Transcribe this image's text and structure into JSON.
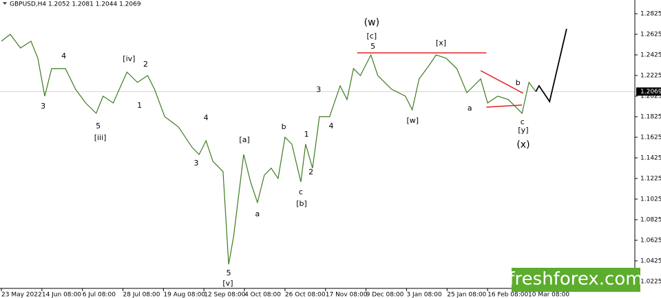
{
  "chart_data": {
    "type": "line",
    "title": "GBPUSD,H4  1.2052 1.2081 1.2044 1.2069",
    "last_price": 1.2069,
    "watermark": "freshforex.com",
    "xlim": [
      0,
      15.6
    ],
    "ylim": [
      1.0158,
      1.2958
    ],
    "xticks": [
      {
        "value": 0,
        "label": "23 May 2022"
      },
      {
        "value": 1,
        "label": "14 Jun 08:00"
      },
      {
        "value": 2,
        "label": "6 Jul 08:00"
      },
      {
        "value": 3,
        "label": "28 Jul 08:00"
      },
      {
        "value": 4,
        "label": "19 Aug 08:00"
      },
      {
        "value": 5,
        "label": "12 Sep 08:00"
      },
      {
        "value": 6,
        "label": "4 Oct 08:00"
      },
      {
        "value": 7,
        "label": "26 Oct 08:00"
      },
      {
        "value": 8,
        "label": "17 Nov 08:00"
      },
      {
        "value": 9,
        "label": "9 Dec 08:00"
      },
      {
        "value": 10,
        "label": "3 Jan 08:00"
      },
      {
        "value": 11,
        "label": "25 Jan 08:00"
      },
      {
        "value": 12,
        "label": "16 Feb 08:00"
      },
      {
        "value": 13,
        "label": "10 Mar 08:00"
      }
    ],
    "yticks": [
      1.2825,
      1.2625,
      1.2425,
      1.2225,
      1.2025,
      1.1825,
      1.1625,
      1.1425,
      1.1225,
      1.1025,
      1.0825,
      1.0625,
      1.0425,
      1.0225
    ],
    "series": [
      {
        "color": "#3d7a1f",
        "x": [
          0,
          0.22,
          0.47,
          0.73,
          0.9,
          1.07,
          1.24,
          1.58,
          1.83,
          2.08,
          2.34,
          2.51,
          2.76,
          3.1,
          3.36,
          3.61,
          3.78,
          4.03,
          4.37,
          4.71,
          4.88,
          5.05,
          5.22,
          5.47,
          5.61,
          5.73,
          5.98,
          6.15,
          6.32,
          6.49,
          6.66,
          6.83,
          7,
          7.17,
          7.39,
          7.51,
          7.68,
          7.85,
          8.1,
          8.36,
          8.53,
          8.69,
          8.86,
          9.12,
          9.29,
          9.63,
          9.97,
          10.14,
          10.31,
          10.56,
          10.73,
          10.98,
          11.24,
          11.49,
          11.66,
          11.83,
          12,
          12.25,
          12.51,
          12.85,
          13.02,
          13.19
        ],
        "values": [
          1.2558,
          1.2625,
          1.2492,
          1.2558,
          1.2392,
          1.2025,
          1.2292,
          1.2292,
          1.2092,
          1.1958,
          1.1858,
          1.2025,
          1.1958,
          1.2258,
          1.2158,
          1.2225,
          1.2092,
          1.1825,
          1.1725,
          1.1525,
          1.1458,
          1.1592,
          1.1392,
          1.1292,
          1.0392,
          1.0658,
          1.1458,
          1.1192,
          1.0992,
          1.1258,
          1.1325,
          1.1225,
          1.1625,
          1.1558,
          1.1192,
          1.1558,
          1.1325,
          1.1825,
          1.1825,
          1.2125,
          1.1992,
          1.2292,
          1.2225,
          1.2425,
          1.2225,
          1.2092,
          1.2025,
          1.1892,
          1.2192,
          1.2325,
          1.2425,
          1.2392,
          1.2292,
          1.2058,
          1.2125,
          1.2192,
          1.1958,
          1.2025,
          1.1992,
          1.1858,
          1.2158,
          1.2069
        ]
      },
      {
        "color": "#000000",
        "x": [
          13.19,
          13.27,
          13.53,
          13.95
        ],
        "values": [
          1.2069,
          1.2125,
          1.1972,
          1.2678
        ]
      }
    ],
    "trend_lines": [
      {
        "color": "#e02020",
        "x": [
          8.78,
          11.97
        ],
        "y": [
          1.2445,
          1.2445
        ]
      },
      {
        "color": "#e02020",
        "x": [
          11.83,
          12.88
        ],
        "y": [
          1.2272,
          1.2052
        ]
      },
      {
        "color": "#e02020",
        "x": [
          11.97,
          12.85
        ],
        "y": [
          1.1918,
          1.1938
        ]
      }
    ],
    "annotations": [
      {
        "text": "4",
        "x": 1.54,
        "y": 1.2412,
        "color": "#e02020"
      },
      {
        "text": "3",
        "x": 1.03,
        "y": 1.1925,
        "color": "#e02020"
      },
      {
        "text": "5",
        "x": 2.39,
        "y": 1.1732,
        "color": "#e02020"
      },
      {
        "text": "2",
        "x": 3.56,
        "y": 1.2332,
        "color": "#e02020"
      },
      {
        "text": "1",
        "x": 3.41,
        "y": 1.1932,
        "color": "#e02020"
      },
      {
        "text": "4",
        "x": 5.05,
        "y": 1.1812,
        "color": "#e02020"
      },
      {
        "text": "3",
        "x": 4.81,
        "y": 1.1372,
        "color": "#e02020"
      },
      {
        "text": "5",
        "x": 5.61,
        "y": 1.0305,
        "color": "#e02020"
      },
      {
        "text": "a",
        "x": 6.32,
        "y": 1.0878,
        "color": "#e02020"
      },
      {
        "text": "b",
        "x": 6.97,
        "y": 1.1725,
        "color": "#e02020"
      },
      {
        "text": "1",
        "x": 7.53,
        "y": 1.1652,
        "color": "#e02020"
      },
      {
        "text": "c",
        "x": 7.39,
        "y": 1.1092,
        "color": "#e02020"
      },
      {
        "text": "2",
        "x": 7.64,
        "y": 1.1285,
        "color": "#e02020"
      },
      {
        "text": "3",
        "x": 7.83,
        "y": 1.2085,
        "color": "#e02020"
      },
      {
        "text": "4",
        "x": 8.14,
        "y": 1.1732,
        "color": "#e02020"
      },
      {
        "text": "5",
        "x": 9.17,
        "y": 1.2505,
        "color": "#e02020"
      },
      {
        "text": "a",
        "x": 11.56,
        "y": 1.1905,
        "color": "#e02020"
      },
      {
        "text": "b",
        "x": 12.75,
        "y": 1.2152,
        "color": "#e02020"
      },
      {
        "text": "c",
        "x": 12.86,
        "y": 1.1772,
        "color": "#e02020"
      },
      {
        "text": "[iii]",
        "x": 2.44,
        "y": 1.1618,
        "color": "#22cc22"
      },
      {
        "text": "[iv]",
        "x": 3.15,
        "y": 1.2385,
        "color": "#22cc22"
      },
      {
        "text": "[v]",
        "x": 5.59,
        "y": 1.0205,
        "color": "#22cc22"
      },
      {
        "text": "[a]",
        "x": 6,
        "y": 1.1598,
        "color": "#22cc22"
      },
      {
        "text": "[b]",
        "x": 7.41,
        "y": 1.0978,
        "color": "#22cc22"
      },
      {
        "text": "[c]",
        "x": 9.14,
        "y": 1.2605,
        "color": "#22cc22"
      },
      {
        "text": "[x]",
        "x": 10.85,
        "y": 1.2538,
        "color": "#22cc22"
      },
      {
        "text": "[w]",
        "x": 10.15,
        "y": 1.1785,
        "color": "#22cc22"
      },
      {
        "text": "[y]",
        "x": 12.88,
        "y": 1.1692,
        "color": "#22cc22"
      },
      {
        "text": "(w)",
        "x": 9.14,
        "y": 1.2738,
        "color": "#1a1acc"
      },
      {
        "text": "(x)",
        "x": 12.88,
        "y": 1.1552,
        "color": "#1a1acc"
      }
    ]
  }
}
